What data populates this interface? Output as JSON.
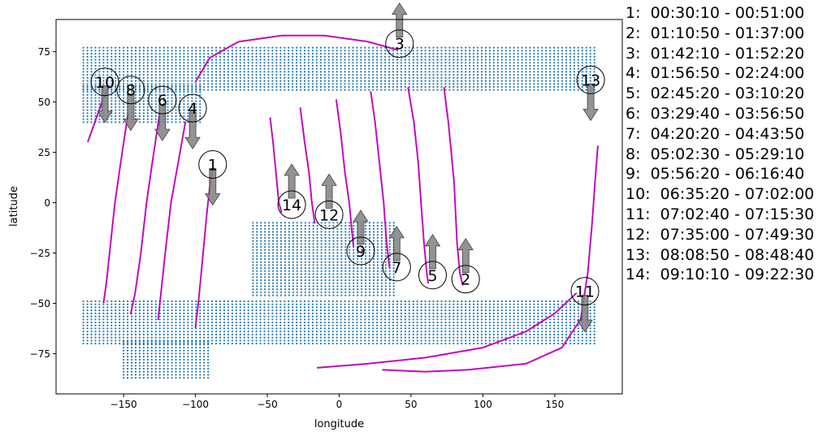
{
  "chart_data": {
    "type": "scatter",
    "xlabel": "longitude",
    "ylabel": "latitude",
    "xlim": [
      -197,
      197
    ],
    "ylim": [
      -95,
      91
    ],
    "xticks": [
      -150,
      -100,
      -50,
      0,
      50,
      100,
      150
    ],
    "xtick_labels": [
      "−150",
      "−100",
      "−50",
      "0",
      "50",
      "100",
      "150"
    ],
    "yticks": [
      -75,
      -50,
      -25,
      0,
      25,
      50,
      75
    ],
    "ytick_labels": [
      "−75",
      "−50",
      "−25",
      "0",
      "25",
      "50",
      "75"
    ],
    "grid": false,
    "legend_position": "outside-right",
    "colors": {
      "coverage": "#1f77b4",
      "track": "#c000c0",
      "arrow": "#808080"
    },
    "coverage_regions": [
      {
        "lon_range": [
          -178,
          178
        ],
        "lat_range": [
          56,
          77
        ]
      },
      {
        "lon_range": [
          -178,
          -95
        ],
        "lat_range": [
          40,
          58
        ]
      },
      {
        "lon_range": [
          -60,
          40
        ],
        "lat_range": [
          -10,
          -46
        ]
      },
      {
        "lon_range": [
          -178,
          178
        ],
        "lat_range": [
          -48,
          -70
        ]
      },
      {
        "lon_range": [
          -150,
          -90
        ],
        "lat_range": [
          -68,
          -87
        ]
      }
    ],
    "tracks": [
      {
        "id": "1",
        "points": [
          [
            -100,
            -62
          ],
          [
            -98,
            -50
          ],
          [
            -96,
            -35
          ],
          [
            -94,
            -20
          ],
          [
            -92,
            -5
          ],
          [
            -90,
            8
          ],
          [
            -88,
            17
          ]
        ]
      },
      {
        "id": "2",
        "points": [
          [
            73,
            57
          ],
          [
            76,
            40
          ],
          [
            78,
            25
          ],
          [
            80,
            10
          ],
          [
            81,
            -5
          ],
          [
            82,
            -20
          ],
          [
            84,
            -35
          ],
          [
            86,
            -41
          ]
        ]
      },
      {
        "id": "3",
        "points": [
          [
            -100,
            60
          ],
          [
            -90,
            72
          ],
          [
            -70,
            80
          ],
          [
            -40,
            83
          ],
          [
            -10,
            83
          ],
          [
            20,
            80
          ],
          [
            35,
            77
          ],
          [
            40,
            76
          ]
        ]
      },
      {
        "id": "4",
        "points": [
          [
            -107,
            40
          ],
          [
            -112,
            20
          ],
          [
            -117,
            0
          ],
          [
            -121,
            -25
          ],
          [
            -124,
            -45
          ],
          [
            -126,
            -58
          ]
        ]
      },
      {
        "id": "5",
        "points": [
          [
            48,
            57
          ],
          [
            52,
            40
          ],
          [
            55,
            20
          ],
          [
            57,
            0
          ],
          [
            59,
            -20
          ],
          [
            61,
            -35
          ],
          [
            62,
            -40
          ]
        ]
      },
      {
        "id": "6",
        "points": [
          [
            -125,
            44
          ],
          [
            -130,
            20
          ],
          [
            -134,
            0
          ],
          [
            -138,
            -25
          ],
          [
            -142,
            -45
          ],
          [
            -145,
            -55
          ]
        ]
      },
      {
        "id": "7",
        "points": [
          [
            22,
            55
          ],
          [
            25,
            40
          ],
          [
            28,
            20
          ],
          [
            31,
            0
          ],
          [
            33,
            -20
          ],
          [
            35,
            -32
          ]
        ]
      },
      {
        "id": "8",
        "points": [
          [
            -147,
            44
          ],
          [
            -152,
            20
          ],
          [
            -156,
            0
          ],
          [
            -159,
            -20
          ],
          [
            -162,
            -40
          ],
          [
            -164,
            -50
          ]
        ]
      },
      {
        "id": "9",
        "points": [
          [
            -2,
            51
          ],
          [
            1,
            35
          ],
          [
            4,
            15
          ],
          [
            7,
            0
          ],
          [
            9,
            -15
          ],
          [
            10,
            -22
          ]
        ]
      },
      {
        "id": "10",
        "points": [
          [
            -160,
            58
          ],
          [
            -165,
            50
          ],
          [
            -170,
            40
          ],
          [
            -175,
            30
          ]
        ]
      },
      {
        "id": "11",
        "points": [
          [
            -15,
            -82
          ],
          [
            20,
            -80
          ],
          [
            60,
            -77
          ],
          [
            100,
            -72
          ],
          [
            130,
            -64
          ],
          [
            150,
            -55
          ],
          [
            165,
            -45
          ]
        ]
      },
      {
        "id": "12",
        "points": [
          [
            -27,
            47
          ],
          [
            -24,
            30
          ],
          [
            -21,
            15
          ],
          [
            -19,
            0
          ],
          [
            -17,
            -10
          ]
        ]
      },
      {
        "id": "13",
        "points": [
          [
            180,
            28
          ],
          [
            178,
            10
          ],
          [
            176,
            -10
          ],
          [
            173,
            -35
          ],
          [
            168,
            -58
          ],
          [
            155,
            -72
          ],
          [
            130,
            -80
          ],
          [
            90,
            -83
          ],
          [
            60,
            -84
          ],
          [
            30,
            -83
          ]
        ]
      },
      {
        "id": "14",
        "points": [
          [
            -48,
            42
          ],
          [
            -46,
            30
          ],
          [
            -44,
            15
          ],
          [
            -42,
            0
          ],
          [
            -40,
            -5
          ]
        ]
      }
    ],
    "annotations": [
      {
        "label": "1",
        "lon": -88,
        "lat": 19,
        "arrow": "down"
      },
      {
        "label": "2",
        "lon": 88,
        "lat": -38,
        "arrow": "up"
      },
      {
        "label": "3",
        "lon": 42,
        "lat": 79,
        "arrow": "up"
      },
      {
        "label": "4",
        "lon": -102,
        "lat": 47,
        "arrow": "down"
      },
      {
        "label": "5",
        "lon": 65,
        "lat": -36,
        "arrow": "up"
      },
      {
        "label": "6",
        "lon": -123,
        "lat": 51,
        "arrow": "down"
      },
      {
        "label": "7",
        "lon": 40,
        "lat": -32,
        "arrow": "up"
      },
      {
        "label": "8",
        "lon": -145,
        "lat": 56,
        "arrow": "down"
      },
      {
        "label": "9",
        "lon": 15,
        "lat": -24,
        "arrow": "up"
      },
      {
        "label": "10",
        "lon": -163,
        "lat": 60,
        "arrow": "down"
      },
      {
        "label": "11",
        "lon": 171,
        "lat": -44,
        "arrow": "down"
      },
      {
        "label": "12",
        "lon": -7,
        "lat": -6,
        "arrow": "up"
      },
      {
        "label": "13",
        "lon": 175,
        "lat": 61,
        "arrow": "down"
      },
      {
        "label": "14",
        "lon": -33,
        "lat": -1,
        "arrow": "up"
      }
    ],
    "legend_entries": [
      "1:  00:30:10 - 00:51:00",
      "2:  01:10:50 - 01:37:00",
      "3:  01:42:10 - 01:52:20",
      "4:  01:56:50 - 02:24:00",
      "5:  02:45:20 - 03:10:20",
      "6:  03:29:40 - 03:56:50",
      "7:  04:20:20 - 04:43:50",
      "8:  05:02:30 - 05:29:10",
      "9:  05:56:20 - 06:16:40",
      "10:  06:35:20 - 07:02:00",
      "11:  07:02:40 - 07:15:30",
      "12:  07:35:00 - 07:49:30",
      "13:  08:08:50 - 08:48:40",
      "14:  09:10:10 - 09:22:30"
    ]
  }
}
